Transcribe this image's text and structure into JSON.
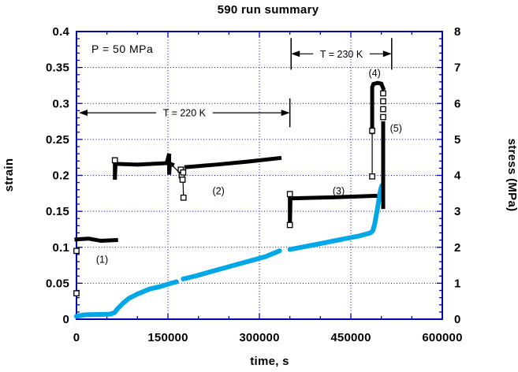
{
  "annotations": {
    "pressure_label": "P = 50 MPa",
    "temp_spans": [
      {
        "label": "T = 220 K",
        "y_strain": 0.287,
        "t_from": 4000,
        "t_to": 350000,
        "bar_left": false,
        "bar_right": true,
        "bar_half_strain": 0.02
      },
      {
        "label": "T = 230 K",
        "y_strain": 0.369,
        "t_from": 352000,
        "t_to": 517000,
        "bar_left": true,
        "bar_right": true,
        "bar_half_strain": 0.022
      }
    ],
    "segment_labels": [
      {
        "text": "(1)",
        "t": 42000,
        "y_strain": 0.083
      },
      {
        "text": "(2)",
        "t": 233000,
        "y_strain": 0.178
      },
      {
        "text": "(3)",
        "t": 430000,
        "y_strain": 0.178
      },
      {
        "text": "(4)",
        "t": 489000,
        "y_strain": 0.342
      },
      {
        "text": "(5)",
        "t": 524000,
        "y_strain": 0.265
      }
    ]
  },
  "chart_data": {
    "type": "line",
    "title": "590 run summary",
    "xlabel": "time, s",
    "ylabel_left": "strain",
    "ylabel_right": "stress (MPa)",
    "xlim": [
      0,
      600000
    ],
    "ylim_left": [
      0,
      0.4
    ],
    "ylim_right": [
      0,
      8
    ],
    "axis_color": "#0000b3",
    "x_major_ticks": [
      {
        "value": 0,
        "label": "0"
      },
      {
        "value": 150000,
        "label": "150000"
      },
      {
        "value": 300000,
        "label": "300000"
      },
      {
        "value": 450000,
        "label": "450000"
      },
      {
        "value": 600000,
        "label": "600000"
      }
    ],
    "x_minor_step": 50000,
    "left_major_ticks": [
      {
        "value": 0,
        "label": "0"
      },
      {
        "value": 0.05,
        "label": "0.05"
      },
      {
        "value": 0.1,
        "label": "0.1"
      },
      {
        "value": 0.15,
        "label": "0.15"
      },
      {
        "value": 0.2,
        "label": "0.2"
      },
      {
        "value": 0.25,
        "label": "0.25"
      },
      {
        "value": 0.3,
        "label": "0.3"
      },
      {
        "value": 0.35,
        "label": "0.35"
      },
      {
        "value": 0.4,
        "label": "0.4"
      }
    ],
    "left_minor_step": 0.01,
    "right_major_ticks": [
      {
        "value": 0,
        "label": "0"
      },
      {
        "value": 1,
        "label": "1"
      },
      {
        "value": 2,
        "label": "2"
      },
      {
        "value": 3,
        "label": "3"
      },
      {
        "value": 4,
        "label": "4"
      },
      {
        "value": 5,
        "label": "5"
      },
      {
        "value": 6,
        "label": "6"
      },
      {
        "value": 7,
        "label": "7"
      },
      {
        "value": 8,
        "label": "8"
      }
    ],
    "right_minor_step": 0.2,
    "grid": {
      "style": "dotted",
      "x_values": [
        150000,
        300000,
        450000
      ],
      "y_left_values": [
        0.05,
        0.1,
        0.15,
        0.2,
        0.25,
        0.3,
        0.35
      ]
    },
    "series": [
      {
        "name": "strain",
        "axis": "left",
        "color": "#00a8e8",
        "style": "thick-line",
        "runs": [
          [
            [
              0,
              0.004
            ],
            [
              12000,
              0.006
            ],
            [
              55000,
              0.007
            ],
            [
              62000,
              0.009
            ],
            [
              68000,
              0.015
            ],
            [
              76000,
              0.022
            ],
            [
              86000,
              0.029
            ],
            [
              100000,
              0.035
            ],
            [
              120000,
              0.042
            ],
            [
              140000,
              0.046
            ],
            [
              155000,
              0.05
            ],
            [
              164000,
              0.052
            ]
          ],
          [
            [
              175000,
              0.056
            ],
            [
              195000,
              0.06
            ],
            [
              220000,
              0.066
            ],
            [
              250000,
              0.073
            ],
            [
              280000,
              0.08
            ],
            [
              310000,
              0.087
            ],
            [
              333000,
              0.095
            ]
          ],
          [
            [
              350000,
              0.097
            ],
            [
              375000,
              0.101
            ],
            [
              405000,
              0.106
            ],
            [
              435000,
              0.111
            ],
            [
              465000,
              0.116
            ],
            [
              482000,
              0.12
            ],
            [
              486000,
              0.123
            ],
            [
              489000,
              0.132
            ],
            [
              492000,
              0.146
            ],
            [
              495000,
              0.161
            ],
            [
              497000,
              0.172
            ],
            [
              499000,
              0.181
            ],
            [
              501000,
              0.186
            ]
          ]
        ]
      },
      {
        "name": "stress",
        "axis": "right",
        "color": "#000000",
        "style": "filled-squares",
        "runs": [
          [
            [
              0,
              2.22
            ],
            [
              20000,
              2.24
            ],
            [
              40000,
              2.18
            ],
            [
              65000,
              2.2
            ]
          ],
          [
            [
              63000,
              4.4
            ],
            [
              63000,
              3.88
            ],
            [
              64000,
              4.32
            ],
            [
              100000,
              4.3
            ],
            [
              148000,
              4.34
            ],
            [
              152000,
              4.6
            ],
            [
              152000,
              4.02
            ],
            [
              153000,
              4.33
            ],
            [
              157000,
              4.3
            ]
          ],
          [
            [
              180000,
              4.23
            ],
            [
              230000,
              4.3
            ],
            [
              280000,
              4.38
            ],
            [
              333000,
              4.48
            ]
          ],
          [
            [
              350000,
              3.44
            ],
            [
              350000,
              2.6
            ],
            [
              351000,
              3.36
            ],
            [
              420000,
              3.39
            ],
            [
              490000,
              3.43
            ]
          ],
          [
            [
              485000,
              5.2
            ],
            [
              485000,
              6.45
            ],
            [
              487000,
              6.54
            ],
            [
              494000,
              6.57
            ],
            [
              500000,
              6.55
            ],
            [
              503000,
              6.42
            ]
          ],
          [
            [
              503000,
              5.45
            ],
            [
              503000,
              3.12
            ]
          ]
        ],
        "open_points": [
          [
            0,
            0.72
          ],
          [
            0,
            1.9
          ],
          [
            63000,
            4.42
          ],
          [
            171000,
            4.16
          ],
          [
            172500,
            4.0
          ],
          [
            174000,
            3.88
          ],
          [
            175000,
            4.08
          ],
          [
            175500,
            3.38
          ],
          [
            350000,
            3.48
          ],
          [
            350000,
            2.62
          ],
          [
            485000,
            5.24
          ],
          [
            485000,
            3.97
          ],
          [
            503000,
            6.28
          ],
          [
            503000,
            6.06
          ],
          [
            503000,
            5.84
          ],
          [
            503000,
            5.62
          ]
        ],
        "connector_lines": [
          [
            [
              157000,
              4.28
            ],
            [
              171000,
              4.04
            ]
          ],
          [
            [
              174500,
              3.93
            ],
            [
              175500,
              3.42
            ]
          ],
          [
            [
              485000,
              5.2
            ],
            [
              485000,
              4.0
            ]
          ]
        ]
      }
    ]
  }
}
